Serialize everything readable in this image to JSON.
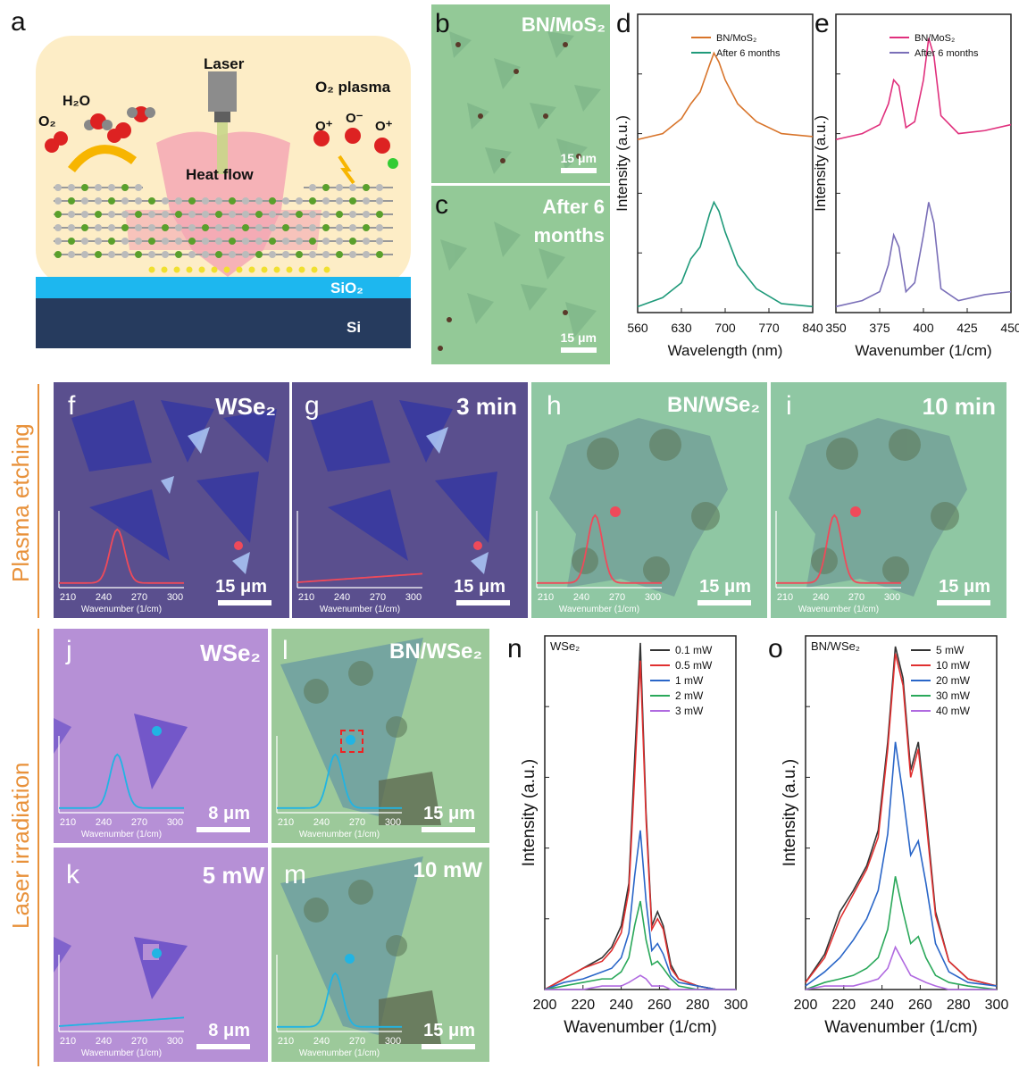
{
  "panel_a": {
    "label": "a",
    "laser": "Laser",
    "h2o": "H₂O",
    "o2": "O₂",
    "o2_plasma": "O₂ plasma",
    "o_plus": "O⁺",
    "o_minus": "O⁻",
    "heat_flow": "Heat flow",
    "sio2": "SiO₂",
    "si": "Si"
  },
  "panel_b": {
    "label": "b",
    "title": "BN/MoS₂",
    "scale": "15 μm"
  },
  "panel_c": {
    "label": "c",
    "title_1": "After 6",
    "title_2": "months",
    "scale": "15 μm"
  },
  "panel_d": {
    "label": "d",
    "ylabel": "Intensity (a.u.)",
    "xlabel": "Wavelength (nm)",
    "ticks": [
      "560",
      "630",
      "700",
      "770",
      "840"
    ],
    "legend": [
      "BN/MoS₂",
      "After 6 months"
    ]
  },
  "panel_e": {
    "label": "e",
    "ylabel": "Intensity (a.u.)",
    "xlabel": "Wavenumber (1/cm)",
    "ticks": [
      "350",
      "375",
      "400",
      "425",
      "450"
    ],
    "legend": [
      "BN/MoS₂",
      "After 6 months"
    ]
  },
  "section_plasma": "Plasma etching",
  "section_laser": "Laser irradiation",
  "panel_f": {
    "label": "f",
    "title": "WSe₂",
    "scale": "15 μm"
  },
  "panel_g": {
    "label": "g",
    "title": "3 min",
    "scale": "15 μm"
  },
  "panel_h": {
    "label": "h",
    "title": "BN/WSe₂",
    "scale": "15 μm"
  },
  "panel_i": {
    "label": "i",
    "title": "10 min",
    "scale": "15 μm"
  },
  "panel_j": {
    "label": "j",
    "title": "WSe₂",
    "scale": "8 μm"
  },
  "panel_k": {
    "label": "k",
    "title": "5 mW",
    "scale": "8 μm"
  },
  "panel_l": {
    "label": "l",
    "title": "BN/WSe₂",
    "scale": "15 μm"
  },
  "panel_m": {
    "label": "m",
    "title": "10 mW",
    "scale": "15 μm"
  },
  "inset": {
    "ticks": [
      "210",
      "240",
      "270",
      "300"
    ],
    "xlabel": "Wavenumber (1/cm)"
  },
  "panel_n": {
    "label": "n",
    "title": "WSe₂",
    "ylabel": "Intensity (a.u.)",
    "xlabel": "Wavenumber (1/cm)",
    "ticks": [
      "200",
      "220",
      "240",
      "260",
      "280",
      "300"
    ],
    "legend": [
      "0.1 mW",
      "0.5 mW",
      "1 mW",
      "2 mW",
      "3 mW"
    ]
  },
  "panel_o": {
    "label": "o",
    "title": "BN/WSe₂",
    "ylabel": "Intensity (a.u.)",
    "xlabel": "Wavenumber (1/cm)",
    "ticks": [
      "200",
      "220",
      "240",
      "260",
      "280",
      "300"
    ],
    "legend": [
      "5 mW",
      "10 mW",
      "20 mW",
      "30 mW",
      "40 mW"
    ]
  },
  "colors": {
    "orange": "#d8742a",
    "teal": "#1f9a7a",
    "pink": "#e0307d",
    "violet": "#7a6fb8",
    "black": "#333333",
    "red": "#e03030",
    "blue": "#2a66c8",
    "green": "#2aa85a",
    "purple": "#b06ae0",
    "accent": "#e8913a"
  },
  "chart_data": [
    {
      "id": "d",
      "type": "line",
      "xlabel": "Wavelength (nm)",
      "ylabel": "Intensity (a.u.)",
      "xlim": [
        560,
        840
      ],
      "series": [
        {
          "name": "BN/MoS₂",
          "x": [
            560,
            600,
            630,
            645,
            660,
            675,
            682,
            690,
            700,
            720,
            750,
            790,
            840
          ],
          "y": [
            0.58,
            0.6,
            0.65,
            0.7,
            0.74,
            0.83,
            0.87,
            0.84,
            0.78,
            0.7,
            0.64,
            0.6,
            0.59
          ]
        },
        {
          "name": "After 6 months",
          "x": [
            560,
            600,
            630,
            645,
            660,
            675,
            682,
            690,
            700,
            720,
            750,
            790,
            840
          ],
          "y": [
            0.02,
            0.05,
            0.1,
            0.18,
            0.22,
            0.33,
            0.37,
            0.34,
            0.27,
            0.16,
            0.08,
            0.03,
            0.02
          ]
        }
      ]
    },
    {
      "id": "e",
      "type": "line",
      "xlabel": "Wavenumber (1/cm)",
      "ylabel": "Intensity (a.u.)",
      "xlim": [
        350,
        450
      ],
      "series": [
        {
          "name": "BN/MoS₂",
          "x": [
            350,
            365,
            375,
            380,
            383,
            386,
            390,
            395,
            400,
            403,
            406,
            410,
            420,
            435,
            450
          ],
          "y": [
            0.58,
            0.6,
            0.63,
            0.7,
            0.78,
            0.76,
            0.62,
            0.64,
            0.78,
            0.92,
            0.86,
            0.66,
            0.6,
            0.61,
            0.63
          ]
        },
        {
          "name": "After 6 months",
          "x": [
            350,
            365,
            375,
            380,
            383,
            386,
            390,
            395,
            400,
            403,
            406,
            410,
            420,
            435,
            450
          ],
          "y": [
            0.02,
            0.04,
            0.07,
            0.16,
            0.26,
            0.22,
            0.07,
            0.1,
            0.26,
            0.37,
            0.3,
            0.08,
            0.04,
            0.06,
            0.07
          ]
        }
      ]
    },
    {
      "id": "n",
      "type": "line",
      "xlabel": "Wavenumber (1/cm)",
      "ylabel": "Intensity (a.u.)",
      "xlim": [
        200,
        300
      ],
      "x": [
        200,
        210,
        220,
        230,
        235,
        240,
        244,
        247,
        250,
        253,
        256,
        259,
        262,
        266,
        270,
        280,
        290,
        300
      ],
      "series": [
        {
          "name": "0.1 mW",
          "y": [
            0.0,
            0.03,
            0.06,
            0.09,
            0.12,
            0.18,
            0.3,
            0.65,
            0.98,
            0.5,
            0.18,
            0.22,
            0.18,
            0.07,
            0.03,
            0.01,
            0.0,
            0.0
          ]
        },
        {
          "name": "0.5 mW",
          "y": [
            0.0,
            0.03,
            0.06,
            0.08,
            0.11,
            0.16,
            0.28,
            0.6,
            0.93,
            0.48,
            0.17,
            0.2,
            0.17,
            0.06,
            0.03,
            0.01,
            0.0,
            0.0
          ]
        },
        {
          "name": "1 mW",
          "y": [
            0.0,
            0.02,
            0.03,
            0.05,
            0.06,
            0.09,
            0.16,
            0.32,
            0.45,
            0.25,
            0.11,
            0.13,
            0.1,
            0.04,
            0.02,
            0.01,
            0.0,
            0.0
          ]
        },
        {
          "name": "2 mW",
          "y": [
            0.0,
            0.01,
            0.02,
            0.03,
            0.03,
            0.05,
            0.09,
            0.18,
            0.25,
            0.14,
            0.07,
            0.08,
            0.06,
            0.03,
            0.01,
            0.0,
            0.0,
            0.0
          ]
        },
        {
          "name": "3 mW",
          "y": [
            0.0,
            0.0,
            0.0,
            0.01,
            0.01,
            0.01,
            0.02,
            0.03,
            0.04,
            0.03,
            0.01,
            0.01,
            0.01,
            0.0,
            0.0,
            0.0,
            0.0,
            0.0
          ]
        }
      ]
    },
    {
      "id": "o",
      "type": "line",
      "xlabel": "Wavenumber (1/cm)",
      "ylabel": "Intensity (a.u.)",
      "xlim": [
        200,
        300
      ],
      "x": [
        200,
        210,
        218,
        225,
        232,
        238,
        243,
        247,
        251,
        255,
        259,
        263,
        268,
        275,
        285,
        300
      ],
      "series": [
        {
          "name": "5 mW",
          "y": [
            0.02,
            0.1,
            0.22,
            0.28,
            0.35,
            0.45,
            0.7,
            0.97,
            0.88,
            0.62,
            0.7,
            0.5,
            0.22,
            0.08,
            0.03,
            0.01
          ]
        },
        {
          "name": "10 mW",
          "y": [
            0.02,
            0.09,
            0.2,
            0.27,
            0.34,
            0.43,
            0.68,
            0.95,
            0.86,
            0.6,
            0.68,
            0.48,
            0.21,
            0.08,
            0.03,
            0.01
          ]
        },
        {
          "name": "20 mW",
          "y": [
            0.01,
            0.05,
            0.09,
            0.14,
            0.2,
            0.28,
            0.44,
            0.7,
            0.55,
            0.38,
            0.42,
            0.3,
            0.13,
            0.05,
            0.02,
            0.01
          ]
        },
        {
          "name": "30 mW",
          "y": [
            0.0,
            0.02,
            0.03,
            0.04,
            0.06,
            0.09,
            0.17,
            0.32,
            0.22,
            0.13,
            0.15,
            0.09,
            0.04,
            0.02,
            0.01,
            0.0
          ]
        },
        {
          "name": "40 mW",
          "y": [
            0.0,
            0.01,
            0.01,
            0.01,
            0.02,
            0.03,
            0.06,
            0.12,
            0.08,
            0.04,
            0.03,
            0.02,
            0.01,
            0.0,
            0.0,
            0.0
          ]
        }
      ]
    }
  ]
}
